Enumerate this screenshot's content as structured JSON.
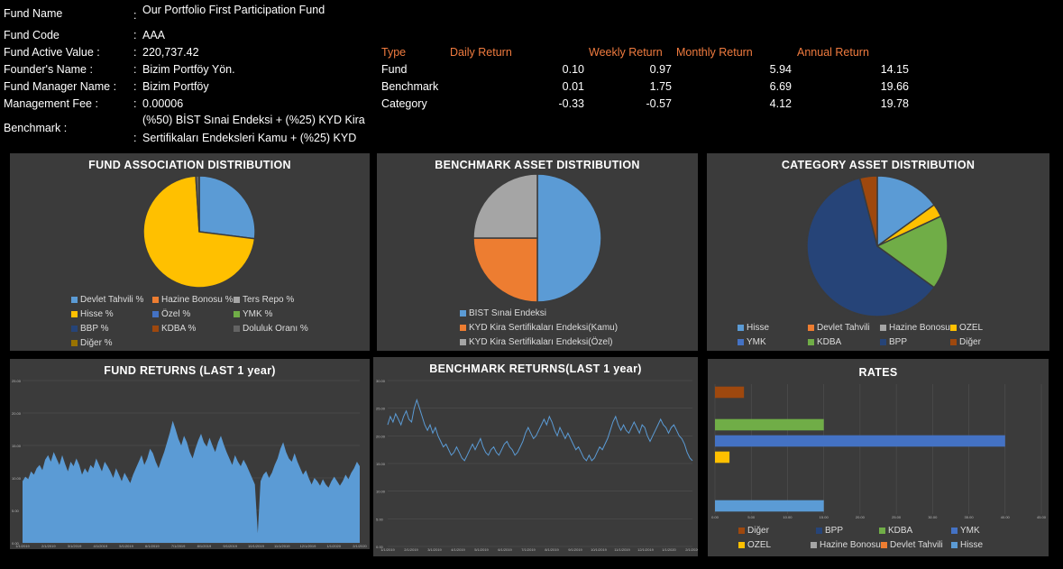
{
  "info": [
    {
      "label": "Fund Name",
      "value": "Our Portfolio First Participation Fund"
    },
    {
      "label": "Fund Code",
      "value": "AAA"
    },
    {
      "label": "Fund Active Value :",
      "value": "220,737.42"
    },
    {
      "label": "Founder's Name :",
      "value": "Bizim Portföy Yön."
    },
    {
      "label": "Fund Manager Name :",
      "value": "Bizim Portföy"
    },
    {
      "label": "Management Fee :",
      "value": "0.00006"
    },
    {
      "label": "Benchmark :",
      "value_line1": "(%50) BİST Sınai Endeksi + (%25) KYD Kira",
      "value_line2": "Sertifikaları Endeksleri Kamu + (%25) KYD"
    }
  ],
  "colon": ":",
  "returns": {
    "headers": [
      "Type",
      "Daily Return",
      "Weekly Return",
      "Monthly Return",
      "Annual Return"
    ],
    "rows": [
      {
        "type": "Fund",
        "daily": "0.10",
        "weekly": "0.97",
        "monthly": "5.94",
        "annual": "14.15"
      },
      {
        "type": "Benchmark",
        "daily": "0.01",
        "weekly": "1.75",
        "monthly": "6.69",
        "annual": "19.66"
      },
      {
        "type": "Category",
        "daily": "-0.33",
        "weekly": "-0.57",
        "monthly": "4.12",
        "annual": "19.78"
      }
    ]
  },
  "panels": {
    "fund_assoc": {
      "title": "FUND ASSOCIATION DISTRIBUTION"
    },
    "bench_asset": {
      "title": "BENCHMARK ASSET DISTRIBUTION"
    },
    "cat_asset": {
      "title": "CATEGORY ASSET DISTRIBUTION"
    },
    "fund_returns": {
      "title": "FUND RETURNS (LAST 1 year)"
    },
    "bench_returns": {
      "title": "BENCHMARK RETURNS(LAST 1 year)"
    },
    "rates": {
      "title": "RATES"
    }
  },
  "colors": {
    "blue": "#5b9bd5",
    "orange": "#ed7d31",
    "gray": "#a5a5a5",
    "yellow": "#ffc000",
    "navy": "#4472c4",
    "green": "#70ad47",
    "darkblue": "#264478",
    "brown": "#9e480e",
    "olive": "#997300",
    "return_orange": "#f07b3f",
    "panel_bg": "#3b3b3b"
  },
  "chart_data": [
    {
      "type": "pie",
      "title": "FUND ASSOCIATION DISTRIBUTION",
      "categories": [
        "Devlet Tahvili %",
        "Hazine Bonosu %",
        "Ters Repo %",
        "Hisse %",
        "Özel %",
        "YMK %",
        "BBP %",
        "KDBA %",
        "Doluluk Oranı %",
        "Diğer %"
      ],
      "values": [
        27,
        0,
        0,
        72,
        0,
        0,
        0,
        0,
        1,
        0
      ],
      "legend": "bottom"
    },
    {
      "type": "pie",
      "title": "BENCHMARK ASSET DISTRIBUTION",
      "categories": [
        "BIST Sınai Endeksi",
        "KYD Kira Sertifikaları Endeksi(Kamu)",
        "KYD Kira Sertifikaları Endeksi(Özel)"
      ],
      "values": [
        50,
        25,
        25
      ],
      "legend": "bottom"
    },
    {
      "type": "pie",
      "title": "CATEGORY ASSET DISTRIBUTION",
      "categories": [
        "Hisse",
        "Devlet Tahvili",
        "Hazine Bonosu",
        "OZEL",
        "YMK",
        "KDBA",
        "BPP",
        "Diğer"
      ],
      "values": [
        15,
        0,
        0,
        3,
        0,
        17,
        61,
        4
      ],
      "legend": "bottom"
    },
    {
      "type": "area",
      "title": "FUND RETURNS (LAST 1 year)",
      "y_ticks": [
        "0.00",
        "5.00",
        "10.00",
        "15.00",
        "20.00",
        "25.00"
      ],
      "x_ticks": [
        "1/1/2019",
        "2/1/2019",
        "3/1/2019",
        "4/1/2019",
        "5/1/2019",
        "6/1/2019",
        "7/1/2019",
        "8/1/2019",
        "9/1/2019",
        "10/1/2019",
        "11/1/2019",
        "12/1/2019",
        "1/1/2020",
        "2/1/2020"
      ],
      "ylim": [
        0,
        25
      ],
      "values": [
        9.5,
        10.2,
        9.8,
        11.0,
        10.5,
        11.5,
        12.0,
        11.2,
        12.8,
        13.5,
        12.5,
        14.0,
        13.0,
        12.0,
        13.5,
        12.2,
        11.0,
        12.5,
        11.8,
        13.0,
        12.0,
        10.5,
        11.5,
        10.8,
        12.0,
        11.5,
        13.0,
        12.0,
        11.0,
        12.5,
        11.8,
        11.0,
        10.0,
        11.5,
        10.5,
        9.5,
        10.8,
        10.0,
        9.2,
        10.5,
        11.5,
        12.5,
        13.5,
        12.0,
        13.0,
        14.5,
        13.8,
        12.5,
        11.5,
        12.8,
        14.0,
        15.5,
        17.0,
        18.8,
        17.5,
        16.0,
        15.0,
        16.5,
        15.5,
        14.0,
        13.0,
        14.5,
        15.8,
        16.8,
        15.5,
        14.8,
        16.2,
        15.0,
        14.0,
        15.5,
        16.5,
        15.2,
        14.0,
        13.0,
        12.0,
        13.5,
        12.5,
        11.8,
        12.8,
        12.0,
        11.0,
        10.0,
        9.0,
        1.5,
        9.5,
        10.5,
        11.0,
        10.0,
        10.8,
        12.0,
        13.0,
        14.5,
        15.5,
        14.0,
        13.0,
        12.5,
        13.8,
        12.5,
        11.5,
        10.5,
        11.2,
        10.0,
        9.0,
        10.0,
        9.5,
        8.8,
        9.8,
        9.0,
        8.5,
        9.5,
        10.2,
        9.5,
        8.8,
        9.5,
        10.5,
        9.8,
        10.8,
        11.5,
        12.5,
        11.8
      ]
    },
    {
      "type": "line",
      "title": "BENCHMARK RETURNS(LAST 1 year)",
      "y_ticks": [
        "0.00",
        "5.00",
        "10.00",
        "15.00",
        "20.00",
        "25.00",
        "30.00"
      ],
      "x_ticks": [
        "1/1/2019",
        "2/1/2019",
        "3/1/2019",
        "4/1/2019",
        "5/1/2019",
        "6/1/2019",
        "7/1/2019",
        "8/1/2019",
        "9/1/2019",
        "10/1/2019",
        "11/1/2019",
        "12/1/2019",
        "1/1/2020",
        "2/1/2020"
      ],
      "ylim": [
        0,
        30
      ],
      "values": [
        22.0,
        23.5,
        22.5,
        24.0,
        23.0,
        22.0,
        23.5,
        24.5,
        23.0,
        22.5,
        25.0,
        26.5,
        25.0,
        23.5,
        22.0,
        21.0,
        22.0,
        20.5,
        21.5,
        20.0,
        19.0,
        18.0,
        18.5,
        17.5,
        16.5,
        17.0,
        18.0,
        17.0,
        16.0,
        15.5,
        16.5,
        17.5,
        18.5,
        17.5,
        18.5,
        19.5,
        18.0,
        17.0,
        16.5,
        17.5,
        18.0,
        17.0,
        16.5,
        17.5,
        18.5,
        19.0,
        18.0,
        17.5,
        16.5,
        17.0,
        18.0,
        19.0,
        20.5,
        21.5,
        20.5,
        19.5,
        20.0,
        21.0,
        22.0,
        23.0,
        22.0,
        23.5,
        22.5,
        21.0,
        20.0,
        21.5,
        20.5,
        19.5,
        20.5,
        19.5,
        18.5,
        17.5,
        18.0,
        17.0,
        16.0,
        15.5,
        16.5,
        15.5,
        16.0,
        17.0,
        18.0,
        17.5,
        18.5,
        19.5,
        21.0,
        22.5,
        23.5,
        22.0,
        21.0,
        22.0,
        21.0,
        20.5,
        21.5,
        22.5,
        21.5,
        20.5,
        22.0,
        21.5,
        20.0,
        19.0,
        20.0,
        21.0,
        22.0,
        23.0,
        22.0,
        21.5,
        20.5,
        21.5,
        22.0,
        21.0,
        20.0,
        19.5,
        18.5,
        17.0,
        16.0,
        15.5
      ]
    },
    {
      "type": "bar",
      "orientation": "horizontal",
      "title": "RATES",
      "categories": [
        "Diğer",
        "BPP",
        "KDBA",
        "YMK",
        "OZEL",
        "Hazine Bonosu",
        "Devlet Tahvili",
        "Hisse"
      ],
      "values": [
        4,
        0,
        15,
        40,
        2,
        0,
        0,
        15
      ],
      "x_ticks": [
        "0.00",
        "5.00",
        "10.00",
        "15.00",
        "20.00",
        "25.00",
        "30.00",
        "35.00",
        "40.00",
        "45.00"
      ],
      "xlim": [
        0,
        45
      ],
      "legend": "bottom"
    }
  ]
}
